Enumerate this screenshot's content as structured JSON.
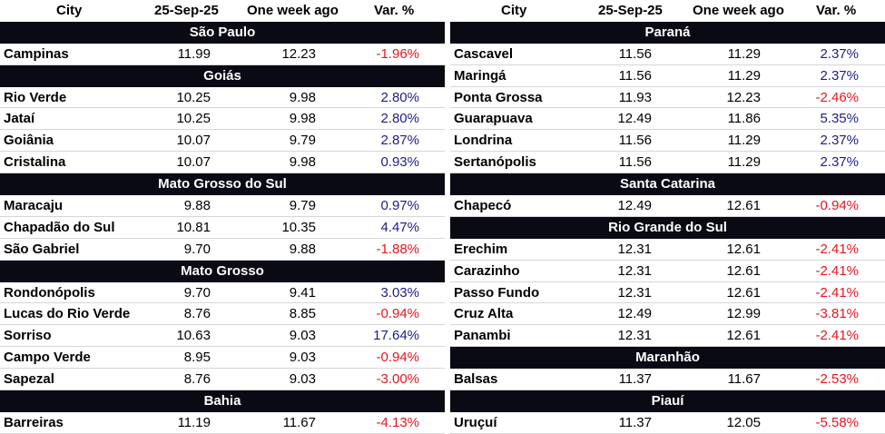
{
  "headers": {
    "city": "City",
    "date1": "25-Sep-25",
    "date2": "One week ago",
    "var": "Var. %"
  },
  "left": [
    {
      "region": "São Paulo",
      "rows": [
        {
          "city": "Campinas",
          "d1": "11.99",
          "d2": "12.23",
          "var": "-1.96%"
        }
      ]
    },
    {
      "region": "Goiás",
      "rows": [
        {
          "city": "Rio Verde",
          "d1": "10.25",
          "d2": "9.98",
          "var": "2.80%"
        },
        {
          "city": "Jataí",
          "d1": "10.25",
          "d2": "9.98",
          "var": "2.80%"
        },
        {
          "city": "Goiânia",
          "d1": "10.07",
          "d2": "9.79",
          "var": "2.87%"
        },
        {
          "city": "Cristalina",
          "d1": "10.07",
          "d2": "9.98",
          "var": "0.93%"
        }
      ]
    },
    {
      "region": "Mato Grosso do Sul",
      "rows": [
        {
          "city": "Maracaju",
          "d1": "9.88",
          "d2": "9.79",
          "var": "0.97%"
        },
        {
          "city": "Chapadão do Sul",
          "d1": "10.81",
          "d2": "10.35",
          "var": "4.47%"
        },
        {
          "city": "São Gabriel",
          "d1": "9.70",
          "d2": "9.88",
          "var": "-1.88%"
        }
      ]
    },
    {
      "region": "Mato Grosso",
      "rows": [
        {
          "city": "Rondonópolis",
          "d1": "9.70",
          "d2": "9.41",
          "var": "3.03%"
        },
        {
          "city": "Lucas do Rio Verde",
          "d1": "8.76",
          "d2": "8.85",
          "var": "-0.94%"
        },
        {
          "city": "Sorriso",
          "d1": "10.63",
          "d2": "9.03",
          "var": "17.64%"
        },
        {
          "city": "Campo Verde",
          "d1": "8.95",
          "d2": "9.03",
          "var": "-0.94%"
        },
        {
          "city": "Sapezal",
          "d1": "8.76",
          "d2": "9.03",
          "var": "-3.00%"
        }
      ]
    },
    {
      "region": "Bahia",
      "rows": [
        {
          "city": "Barreiras",
          "d1": "11.19",
          "d2": "11.67",
          "var": "-4.13%"
        }
      ]
    }
  ],
  "right": [
    {
      "region": "Paraná",
      "rows": [
        {
          "city": "Cascavel",
          "d1": "11.56",
          "d2": "11.29",
          "var": "2.37%"
        },
        {
          "city": "Maringá",
          "d1": "11.56",
          "d2": "11.29",
          "var": "2.37%"
        },
        {
          "city": "Ponta Grossa",
          "d1": "11.93",
          "d2": "12.23",
          "var": "-2.46%"
        },
        {
          "city": "Guarapuava",
          "d1": "12.49",
          "d2": "11.86",
          "var": "5.35%"
        },
        {
          "city": "Londrina",
          "d1": "11.56",
          "d2": "11.29",
          "var": "2.37%"
        },
        {
          "city": "Sertanópolis",
          "d1": "11.56",
          "d2": "11.29",
          "var": "2.37%"
        }
      ]
    },
    {
      "region": "Santa Catarina",
      "rows": [
        {
          "city": "Chapecó",
          "d1": "12.49",
          "d2": "12.61",
          "var": "-0.94%"
        }
      ]
    },
    {
      "region": "Rio Grande do Sul",
      "rows": [
        {
          "city": "Erechim",
          "d1": "12.31",
          "d2": "12.61",
          "var": "-2.41%"
        },
        {
          "city": "Carazinho",
          "d1": "12.31",
          "d2": "12.61",
          "var": "-2.41%"
        },
        {
          "city": "Passo Fundo",
          "d1": "12.31",
          "d2": "12.61",
          "var": "-2.41%"
        },
        {
          "city": "Cruz Alta",
          "d1": "12.49",
          "d2": "12.99",
          "var": "-3.81%"
        },
        {
          "city": "Panambi",
          "d1": "12.31",
          "d2": "12.61",
          "var": "-2.41%"
        }
      ]
    },
    {
      "region": "Maranhão",
      "rows": [
        {
          "city": "Balsas",
          "d1": "11.37",
          "d2": "11.67",
          "var": "-2.53%"
        }
      ]
    },
    {
      "region": "Piauí",
      "rows": [
        {
          "city": "Uruçuí",
          "d1": "11.37",
          "d2": "12.05",
          "var": "-5.58%"
        }
      ]
    }
  ],
  "colors": {
    "positive": "#1c1c8c",
    "negative": "#e8141e",
    "region_bg": "#0a0a14"
  }
}
